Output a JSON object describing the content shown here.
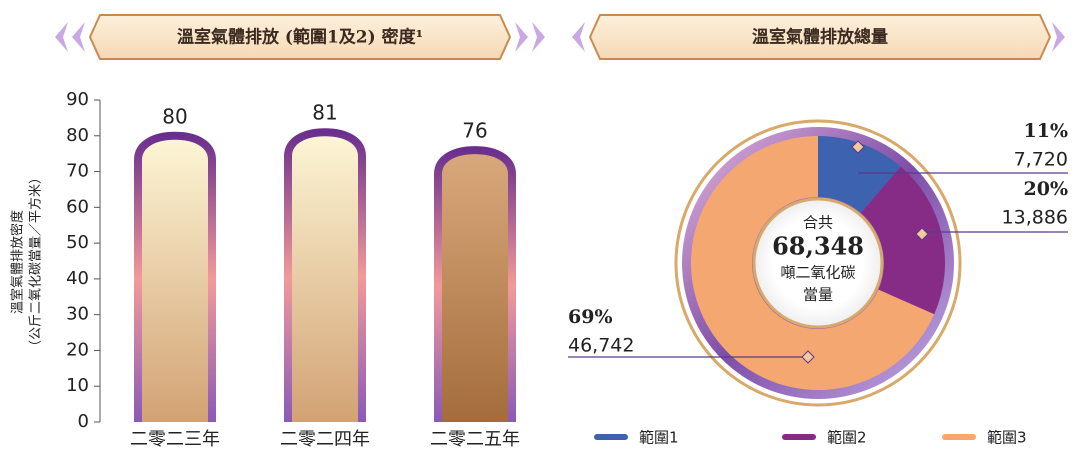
{
  "chart_data": [
    {
      "type": "bar",
      "title": "溫室氣體排放 (範圍1及2) 密度¹",
      "ylabel": [
        "溫室氣體排放密度",
        "（公斤二氧化碳當量／平方米）"
      ],
      "categories": [
        "二零二三年",
        "二零二四年",
        "二零二五年"
      ],
      "values": [
        80,
        81,
        76
      ],
      "ylim": [
        0,
        90
      ],
      "yticks": [
        0,
        10,
        20,
        30,
        40,
        50,
        60,
        70,
        80,
        90
      ]
    },
    {
      "type": "pie",
      "title": "溫室氣體排放總量",
      "categories": [
        "範圍1",
        "範圍2",
        "範圍3"
      ],
      "values": [
        7720,
        13886,
        46742
      ],
      "value_labels": [
        "7,720",
        "13,886",
        "46,742"
      ],
      "percents": [
        11,
        20,
        69
      ],
      "percent_labels": [
        "11%",
        "20%",
        "69%"
      ],
      "colors": [
        "#3d62b0",
        "#862b86",
        "#f5a772"
      ],
      "center_title": "合共",
      "total": 68348,
      "total_label": "68,348",
      "center_unit": [
        "噸二氧化碳",
        "當量"
      ]
    }
  ]
}
